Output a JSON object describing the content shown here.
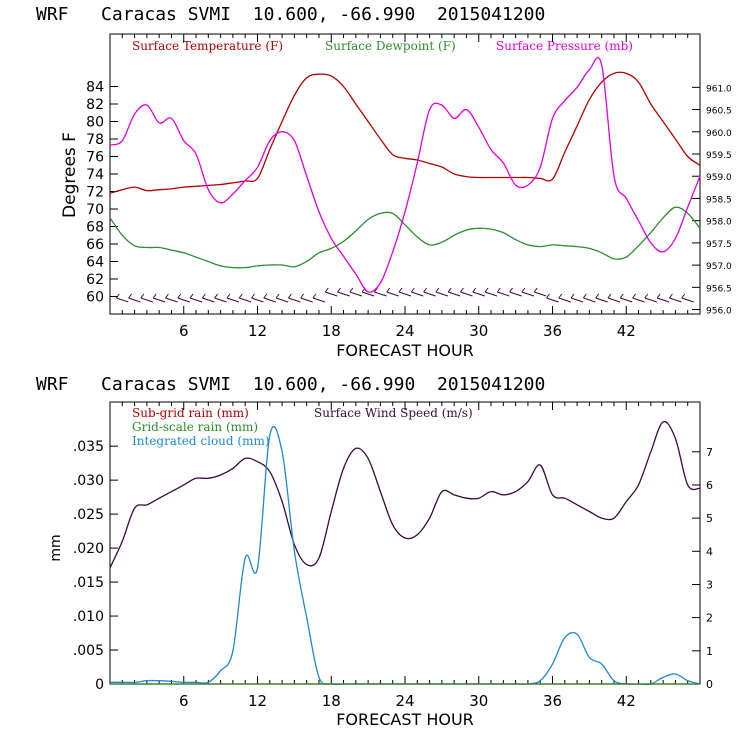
{
  "colors": {
    "temperature": "#b00000",
    "dewpoint": "#2e8b2e",
    "pressure": "#e000e0",
    "wind_speed": "#3a0a3a",
    "subgrid_rain": "#b00000",
    "gridscale_rain": "#2e8b2e",
    "cloud": "#1f88d0",
    "axis": "#000000"
  },
  "chart_data": [
    {
      "type": "line",
      "title": "WRF   Caracas SVMI  10.600, -66.990  2015041200",
      "xlabel": "FORECAST HOUR",
      "ylabel": "Degrees F",
      "xlim": [
        0,
        48
      ],
      "ylim": [
        58,
        90
      ],
      "y2lim": [
        955.9,
        962.2
      ],
      "x_ticks": [
        "6",
        "12",
        "18",
        "24",
        "30",
        "36",
        "42"
      ],
      "y_ticks": [
        "60",
        "62",
        "64",
        "66",
        "68",
        "70",
        "72",
        "74",
        "76",
        "78",
        "80",
        "82",
        "84"
      ],
      "y2_ticks": [
        "956.0",
        "956.5",
        "957.0",
        "957.5",
        "958.0",
        "958.5",
        "959.0",
        "959.5",
        "960.0",
        "960.5",
        "961.0"
      ],
      "legend": [
        "Surface Temperature (F)",
        "Surface Dewpoint (F)",
        "Surface Pressure (mb)"
      ],
      "series": [
        {
          "name": "Surface Temperature (F)",
          "axis": "left",
          "x": [
            0,
            1,
            2,
            3,
            4,
            5,
            6,
            7,
            8,
            9,
            10,
            11,
            12,
            13,
            14,
            15,
            16,
            17,
            18,
            19,
            20,
            21,
            22,
            23,
            24,
            25,
            26,
            27,
            28,
            29,
            30,
            31,
            32,
            33,
            34,
            35,
            36,
            37,
            38,
            39,
            40,
            41,
            42,
            43,
            44,
            45,
            46,
            47,
            48
          ],
          "values": [
            71.8,
            72.2,
            72.5,
            72.1,
            72.2,
            72.3,
            72.5,
            72.6,
            72.7,
            72.8,
            73.0,
            73.2,
            73.5,
            76.8,
            80.0,
            83.0,
            85.0,
            85.4,
            85.2,
            84.0,
            82.0,
            80.0,
            78.0,
            76.2,
            75.8,
            75.6,
            75.2,
            74.8,
            74.0,
            73.7,
            73.6,
            73.6,
            73.6,
            73.6,
            73.6,
            73.5,
            73.4,
            76.5,
            79.5,
            82.5,
            84.5,
            85.5,
            85.5,
            84.5,
            82.0,
            80.0,
            78.0,
            76.0,
            75.0
          ]
        },
        {
          "name": "Surface Dewpoint (F)",
          "axis": "left",
          "x": [
            0,
            1,
            2,
            3,
            4,
            5,
            6,
            7,
            8,
            9,
            10,
            11,
            12,
            13,
            14,
            15,
            16,
            17,
            18,
            19,
            20,
            21,
            22,
            23,
            24,
            25,
            26,
            27,
            28,
            29,
            30,
            31,
            32,
            33,
            34,
            35,
            36,
            37,
            38,
            39,
            40,
            41,
            42,
            43,
            44,
            45,
            46,
            47,
            48
          ],
          "values": [
            69.0,
            67.0,
            65.8,
            65.6,
            65.6,
            65.3,
            65.0,
            64.5,
            64.0,
            63.5,
            63.3,
            63.3,
            63.5,
            63.6,
            63.6,
            63.4,
            64.0,
            65.0,
            65.5,
            66.3,
            67.5,
            68.8,
            69.5,
            69.5,
            68.2,
            66.8,
            65.9,
            66.2,
            67.0,
            67.6,
            67.8,
            67.7,
            67.3,
            66.5,
            65.9,
            65.7,
            65.9,
            65.8,
            65.7,
            65.5,
            65.0,
            64.3,
            64.5,
            65.8,
            67.3,
            69.0,
            70.2,
            69.5,
            67.8
          ]
        },
        {
          "name": "Surface Pressure (mb)",
          "axis": "right",
          "x": [
            0,
            1,
            2,
            3,
            4,
            5,
            6,
            7,
            8,
            9,
            10,
            11,
            12,
            13,
            14,
            15,
            16,
            17,
            18,
            19,
            20,
            21,
            22,
            23,
            24,
            25,
            26,
            27,
            28,
            29,
            30,
            31,
            32,
            33,
            34,
            35,
            36,
            37,
            38,
            39,
            40,
            41,
            42,
            43,
            44,
            45,
            46,
            47,
            48
          ],
          "values": [
            959.7,
            959.8,
            960.4,
            960.6,
            960.2,
            960.3,
            959.8,
            959.5,
            958.7,
            958.4,
            958.6,
            958.9,
            959.2,
            959.8,
            960.0,
            959.8,
            959.0,
            958.2,
            957.6,
            957.2,
            956.8,
            956.4,
            956.6,
            957.3,
            958.2,
            959.3,
            960.5,
            960.6,
            960.3,
            960.5,
            960.1,
            959.6,
            959.3,
            958.8,
            958.8,
            959.2,
            960.3,
            960.7,
            961.0,
            961.4,
            961.5,
            959.0,
            958.5,
            958.0,
            957.5,
            957.3,
            957.6,
            958.3,
            959.0
          ]
        }
      ],
      "wind_barbs": "row of wind barbs along the bottom of the plot"
    },
    {
      "type": "line",
      "title": "WRF   Caracas SVMI  10.600, -66.990  2015041200",
      "xlabel": "FORECAST HOUR",
      "ylabel": "mm",
      "xlim": [
        0,
        48
      ],
      "ylim": [
        0,
        0.0415
      ],
      "y2lim": [
        0,
        8.5
      ],
      "x_ticks": [
        "6",
        "12",
        "18",
        "24",
        "30",
        "36",
        "42"
      ],
      "y_ticks": [
        "0",
        ".005",
        ".010",
        ".015",
        ".020",
        ".025",
        ".030",
        ".035"
      ],
      "y2_ticks": [
        "0",
        "1",
        "2",
        "3",
        "4",
        "5",
        "6",
        "7"
      ],
      "legend": [
        "Sub-grid rain (mm)",
        "Grid-scale rain (mm)",
        "Integrated cloud (mm)",
        "Surface Wind Speed (m/s)"
      ],
      "series": [
        {
          "name": "Surface Wind Speed (m/s)",
          "axis": "right",
          "x": [
            0,
            1,
            2,
            3,
            4,
            5,
            6,
            7,
            8,
            9,
            10,
            11,
            12,
            13,
            14,
            15,
            16,
            17,
            18,
            19,
            20,
            21,
            22,
            23,
            24,
            25,
            26,
            27,
            28,
            29,
            30,
            31,
            32,
            33,
            34,
            35,
            36,
            37,
            38,
            39,
            40,
            41,
            42,
            43,
            44,
            45,
            46,
            47,
            48
          ],
          "values": [
            3.5,
            4.3,
            5.3,
            5.4,
            5.6,
            5.8,
            6.0,
            6.2,
            6.2,
            6.3,
            6.5,
            6.8,
            6.7,
            6.4,
            5.5,
            4.2,
            3.6,
            3.8,
            5.2,
            6.5,
            7.1,
            6.8,
            5.8,
            4.8,
            4.4,
            4.5,
            5.0,
            5.8,
            5.7,
            5.6,
            5.6,
            5.8,
            5.7,
            5.8,
            6.1,
            6.6,
            5.7,
            5.6,
            5.4,
            5.2,
            5.0,
            5.0,
            5.5,
            6.0,
            7.0,
            7.9,
            7.4,
            6.0,
            5.9
          ]
        },
        {
          "name": "Integrated cloud (mm)",
          "axis": "right",
          "x": [
            0,
            1,
            2,
            3,
            4,
            5,
            6,
            7,
            8,
            9,
            10,
            11,
            12,
            13,
            14,
            15,
            16,
            17,
            18,
            19,
            20,
            21,
            22,
            23,
            24,
            25,
            26,
            27,
            28,
            29,
            30,
            31,
            32,
            33,
            34,
            35,
            36,
            37,
            38,
            39,
            40,
            41,
            42,
            43,
            44,
            45,
            46,
            47,
            48
          ],
          "values": [
            0.05,
            0.05,
            0.05,
            0.1,
            0.1,
            0.08,
            0.05,
            0.05,
            0.05,
            0.4,
            1.0,
            3.8,
            3.5,
            7.5,
            7.0,
            4.0,
            2.0,
            0.2,
            0.0,
            0.0,
            0.0,
            0.0,
            0.0,
            0.0,
            0.0,
            0.0,
            0.0,
            0.0,
            0.0,
            0.0,
            0.0,
            0.0,
            0.0,
            0.0,
            0.0,
            0.1,
            0.6,
            1.4,
            1.5,
            0.8,
            0.6,
            0.1,
            0.0,
            0.0,
            0.0,
            0.2,
            0.3,
            0.1,
            0.0
          ]
        },
        {
          "name": "Sub-grid rain (mm)",
          "axis": "left",
          "x": [
            0,
            48
          ],
          "values": [
            0,
            0
          ]
        },
        {
          "name": "Grid-scale rain (mm)",
          "axis": "left",
          "x": [
            0,
            48
          ],
          "values": [
            0,
            0
          ]
        }
      ]
    }
  ]
}
